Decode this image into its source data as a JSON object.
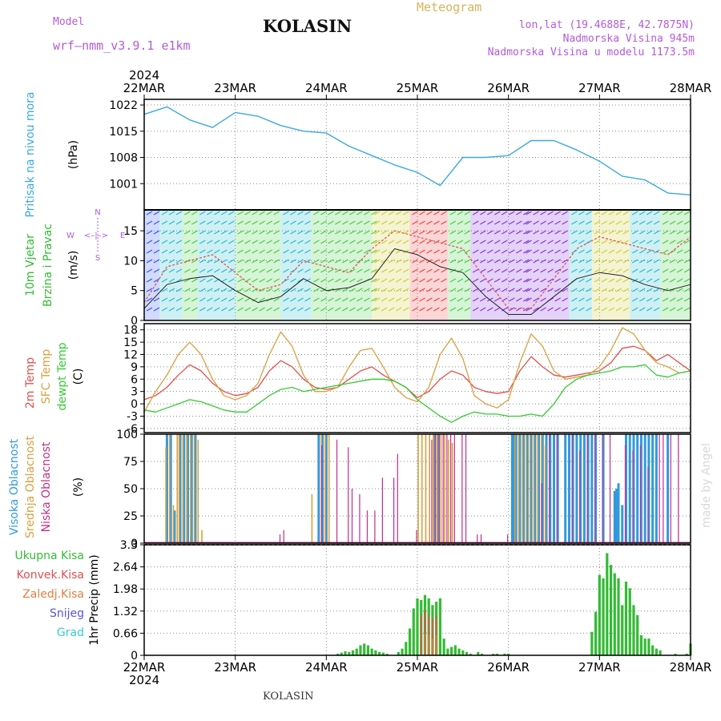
{
  "header": {
    "meteogram": "Meteogram",
    "station": "KOLASIN",
    "model_label": "Model",
    "model_name": "wrf–nmm_v3.9.1  e1km",
    "coords": "lon,lat (19.4688E, 42.7875N)",
    "elevation": "Nadmorska Visina 945m",
    "model_elevation": "Nadmorska Visina u modelu 1173.5m"
  },
  "time_axis": {
    "year_top": "2024",
    "year_bottom": "2024",
    "days": [
      "22MAR",
      "23MAR",
      "24MAR",
      "25MAR",
      "26MAR",
      "27MAR",
      "28MAR"
    ]
  },
  "footer": "KOLASIN",
  "watermark": "made by Angel",
  "colors": {
    "pressure": "#3aa9e0",
    "wind_speed": "#222222",
    "wind_gust": "#e05050",
    "temp_2m": "#e05050",
    "temp_sfc": "#d9a040",
    "dewpoint": "#33cc33",
    "cloud_high": "#3399dd",
    "cloud_mid": "#d9a040",
    "cloud_low": "#c0308a",
    "rain_total": "#33bb33",
    "rain_convective": "#e05050",
    "freezing": "#e08040",
    "snow": "#5555dd",
    "grad": "#33cccc"
  },
  "chart_data": [
    {
      "type": "line",
      "id": "pressure",
      "ylabel_lines": [
        "Pritisak na nivou mora",
        "(hPa)"
      ],
      "yticks": [
        1001,
        1008,
        1015,
        1022
      ],
      "ylim": [
        994,
        1023.5
      ],
      "x_unit": "hours since 22MAR 00",
      "x": [
        0,
        6,
        12,
        18,
        24,
        30,
        36,
        42,
        48,
        54,
        60,
        66,
        72,
        78,
        84,
        90,
        96,
        102,
        108,
        114,
        120,
        126,
        132,
        138,
        144
      ],
      "series": [
        {
          "values": [
            1019.5,
            1021.5,
            1018,
            1016,
            1020,
            1019,
            1016.5,
            1015,
            1014.5,
            1011,
            1008.5,
            1006,
            1004,
            1000.5,
            1008,
            1008,
            1008.5,
            1012.5,
            1012.5,
            1010,
            1007,
            1003,
            1002,
            998.5,
            998
          ]
        }
      ]
    },
    {
      "type": "line",
      "id": "wind",
      "ylabel_lines": [
        "10m Vjetar",
        "Brzina i Pravac",
        "(m/s)"
      ],
      "compass_legend": [
        "W",
        "<–|–>",
        "E",
        "N",
        "S"
      ],
      "yticks": [
        0,
        5,
        10,
        15
      ],
      "ylim": [
        0,
        18.5
      ],
      "x_unit": "hours since 22MAR 00",
      "x": [
        0,
        6,
        12,
        18,
        24,
        30,
        36,
        42,
        48,
        54,
        60,
        66,
        72,
        78,
        84,
        90,
        96,
        102,
        108,
        114,
        120,
        126,
        132,
        138,
        144
      ],
      "series": [
        {
          "values": [
            2,
            6,
            7,
            7.5,
            5,
            3,
            4,
            7,
            5,
            5.5,
            7,
            12,
            11,
            9,
            8,
            4,
            1,
            1,
            4,
            7,
            8,
            7.5,
            6,
            5,
            6
          ]
        },
        {
          "values": [
            3,
            9,
            10,
            11,
            8,
            5,
            6,
            10,
            9,
            8,
            12,
            15,
            14,
            13,
            12,
            7,
            2,
            2,
            7,
            12,
            14,
            13,
            12,
            11,
            14
          ]
        }
      ],
      "direction_bands_hours": [
        [
          0,
          4,
          "blue"
        ],
        [
          4,
          10,
          "cyan"
        ],
        [
          10,
          14,
          "green"
        ],
        [
          14,
          24,
          "cyan"
        ],
        [
          24,
          36,
          "green"
        ],
        [
          36,
          44,
          "cyan"
        ],
        [
          44,
          60,
          "green"
        ],
        [
          60,
          70,
          "yellow"
        ],
        [
          70,
          80,
          "red"
        ],
        [
          80,
          86,
          "green"
        ],
        [
          86,
          100,
          "violet"
        ],
        [
          100,
          112,
          "violet"
        ],
        [
          112,
          118,
          "cyan"
        ],
        [
          118,
          128,
          "yellow"
        ],
        [
          128,
          136,
          "cyan"
        ],
        [
          136,
          144,
          "green"
        ]
      ]
    },
    {
      "type": "line",
      "id": "temperature",
      "ylabel_lines": [
        "2m Temp",
        "SFC Temp",
        "dewpt Temp",
        "(C)"
      ],
      "yticks": [
        -6,
        -3,
        0,
        3,
        6,
        9,
        12,
        15,
        18
      ],
      "ylim": [
        -7,
        19.5
      ],
      "x_unit": "hours since 22MAR 00",
      "x": [
        0,
        3,
        6,
        9,
        12,
        15,
        18,
        21,
        24,
        27,
        30,
        33,
        36,
        39,
        42,
        45,
        48,
        51,
        54,
        57,
        60,
        63,
        66,
        69,
        72,
        75,
        78,
        81,
        84,
        87,
        90,
        93,
        96,
        99,
        102,
        105,
        108,
        111,
        114,
        117,
        120,
        123,
        126,
        129,
        132,
        135,
        138,
        141,
        144
      ],
      "series": [
        {
          "name": "2m Temp",
          "values": [
            1,
            2,
            4,
            7,
            9.5,
            8,
            5,
            3,
            2,
            2.5,
            4,
            8,
            10.5,
            9,
            6,
            4,
            3.5,
            4,
            6,
            8,
            9,
            7,
            5.5,
            4,
            1.5,
            3,
            6,
            8,
            7,
            4,
            3,
            2.5,
            3,
            8,
            11.5,
            9,
            7,
            6.5,
            7,
            7.5,
            8,
            10,
            13.5,
            14,
            13,
            10.5,
            12,
            10,
            8
          ]
        },
        {
          "name": "SFC Temp",
          "values": [
            -2,
            3,
            7,
            12,
            15,
            12,
            6,
            2,
            1,
            2,
            5,
            12,
            17.5,
            14,
            7,
            3,
            3,
            4,
            9,
            13,
            13.5,
            9,
            4,
            1.5,
            0.5,
            4,
            12,
            16,
            11,
            2,
            0,
            -1,
            1,
            10,
            17,
            14,
            8,
            6,
            6.5,
            7,
            9,
            13,
            18.5,
            17,
            13,
            10,
            9,
            7.5,
            8
          ]
        },
        {
          "name": "dewpt Temp",
          "values": [
            -1.5,
            -2,
            -1,
            0,
            1,
            0.5,
            -0.5,
            -1.5,
            -2,
            -2,
            0,
            2,
            3.5,
            4,
            3,
            3.5,
            4,
            4.5,
            5,
            5.5,
            6,
            6,
            5.5,
            4,
            1,
            -1,
            -3,
            -4.5,
            -3,
            -2,
            -2.5,
            -2.5,
            -3,
            -3,
            -2.5,
            -3,
            0,
            4,
            6,
            7,
            7.5,
            8,
            9,
            9,
            9.5,
            7,
            6.5,
            7.5,
            8
          ]
        }
      ]
    },
    {
      "type": "bar",
      "id": "clouds",
      "ylabel_lines": [
        "Visoka Oblacnost",
        "Srednja Oblacnost",
        "Niska Oblacnost",
        "(%)"
      ],
      "yticks": [
        0,
        25,
        50,
        75,
        100
      ],
      "ylim": [
        0,
        100
      ],
      "x_unit": "hours since 22MAR 00",
      "series": [
        {
          "name": "Visoka Oblacnost",
          "x": [
            6,
            7,
            8,
            9.5,
            10.5,
            11.5,
            12.5,
            13.5,
            46,
            47,
            48,
            76.5,
            77.5,
            97,
            97.5,
            98,
            99,
            100,
            101,
            102,
            103,
            104,
            105,
            106,
            107,
            108,
            109,
            111,
            112,
            113,
            114,
            115,
            116,
            117,
            118,
            119,
            121,
            124,
            124.5,
            125,
            126,
            127,
            128,
            129,
            130,
            131,
            132,
            133,
            134,
            135,
            138
          ],
          "values": [
            100,
            100,
            30,
            100,
            100,
            100,
            100,
            100,
            100,
            100,
            100,
            100,
            100,
            100,
            100,
            100,
            100,
            100,
            100,
            100,
            100,
            100,
            100,
            100,
            100,
            100,
            100,
            100,
            100,
            100,
            100,
            100,
            100,
            100,
            100,
            100,
            100,
            48,
            50,
            55,
            35,
            100,
            100,
            100,
            100,
            100,
            100,
            100,
            100,
            100,
            100
          ]
        },
        {
          "name": "Srednja Oblacnost",
          "x": [
            5.5,
            6.5,
            7.5,
            8.5,
            9,
            10,
            11,
            12,
            13,
            14,
            15,
            44,
            46.5,
            47.5,
            48.5,
            72,
            73,
            74,
            75,
            76,
            77,
            78,
            79,
            80,
            81,
            97.5,
            98.5,
            99.5,
            100.5,
            101.5,
            102.5,
            103.5,
            104.5,
            105.5
          ],
          "values": [
            88,
            100,
            35,
            100,
            100,
            100,
            100,
            100,
            100,
            95,
            12,
            45,
            100,
            100,
            100,
            100,
            100,
            100,
            100,
            100,
            100,
            100,
            100,
            95,
            92,
            100,
            100,
            100,
            100,
            100,
            100,
            100,
            100,
            90
          ]
        },
        {
          "name": "Niska Oblacnost",
          "x": [
            36,
            37,
            47,
            51,
            54,
            55,
            57,
            59,
            61,
            63,
            66,
            67,
            72,
            76,
            77,
            78,
            79,
            80,
            81,
            82,
            84,
            85,
            88,
            89,
            96,
            105,
            107,
            109,
            113,
            115,
            117,
            119,
            121,
            123,
            127,
            129,
            131,
            133,
            136,
            137,
            139,
            141
          ],
          "values": [
            8,
            12,
            90,
            95,
            88,
            50,
            45,
            30,
            30,
            60,
            60,
            82,
            12,
            95,
            100,
            100,
            100,
            100,
            100,
            100,
            100,
            100,
            8,
            8,
            8,
            55,
            100,
            100,
            100,
            85,
            100,
            100,
            100,
            100,
            90,
            85,
            90,
            70,
            100,
            100,
            100,
            100
          ]
        }
      ]
    },
    {
      "type": "bar",
      "id": "precip",
      "ylabel_lines": [
        "1hr Precip (mm)"
      ],
      "legend": [
        "Ukupna Kisa",
        "Konvek.Kisa",
        "Zaledj.Kisa",
        "Snijeg",
        "Grad"
      ],
      "yticks": [
        0,
        0.66,
        1.32,
        1.98,
        2.64,
        3.3
      ],
      "ytick_labels": [
        "0",
        "0.66",
        "1.32",
        "1.98",
        "2.64",
        "3.3"
      ],
      "ylim": [
        0,
        3.3
      ],
      "x_unit": "hours since 22MAR 00",
      "series": [
        {
          "name": "Ukupna Kisa",
          "x": [
            51,
            52,
            53,
            54,
            55,
            56,
            57,
            58,
            59,
            60,
            61,
            62,
            63,
            64,
            67,
            68,
            69,
            70,
            71,
            72,
            73,
            74,
            75,
            76,
            77,
            78,
            79,
            80,
            81,
            82,
            83,
            84,
            85,
            86,
            88,
            89,
            92,
            93,
            95,
            96,
            118,
            119,
            120,
            121,
            122,
            123,
            124,
            125,
            126,
            127,
            128,
            129,
            130,
            131,
            132,
            133,
            134,
            135,
            136,
            140,
            143,
            144
          ],
          "values": [
            0.05,
            0.08,
            0.12,
            0.1,
            0.15,
            0.2,
            0.3,
            0.35,
            0.3,
            0.2,
            0.15,
            0.1,
            0.08,
            0.05,
            0.1,
            0.2,
            0.4,
            0.8,
            1.4,
            1.7,
            1.65,
            1.8,
            1.7,
            1.5,
            1.6,
            1.7,
            0.5,
            0.2,
            0.25,
            0.3,
            0.2,
            0.15,
            0.1,
            0.05,
            0.1,
            0.05,
            0.05,
            0.05,
            0.05,
            0.05,
            0.7,
            1.3,
            2.4,
            2.3,
            3.05,
            2.7,
            2.45,
            2.3,
            1.5,
            2.2,
            2.0,
            1.5,
            1.2,
            0.6,
            0.5,
            0.5,
            0.3,
            0.2,
            0.15,
            0.05,
            0.05,
            0.35
          ]
        },
        {
          "name": "Konvek.Kisa",
          "x": [
            73,
            74,
            75,
            76,
            77
          ],
          "values": [
            1.2,
            1.35,
            1.2,
            1.1,
            1.2
          ]
        },
        {
          "name": "Zaledj.Kisa",
          "x": [
            74,
            75,
            76,
            77
          ],
          "values": [
            0.65,
            0.6,
            0.5,
            0.6
          ]
        }
      ]
    }
  ]
}
